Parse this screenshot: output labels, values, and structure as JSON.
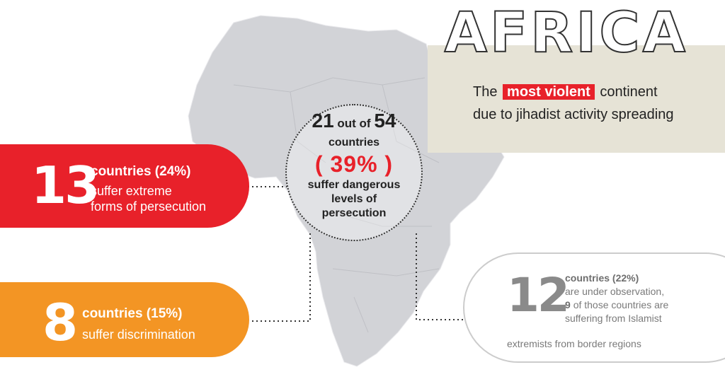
{
  "title": "AFRICA",
  "subtitle": {
    "before": "The",
    "highlight": "most violent",
    "after": "continent",
    "line2": "due to jihadist activity spreading"
  },
  "circle": {
    "count": "21",
    "out_of": "out of",
    "total": "54",
    "countries": "countries",
    "percent": "( 39% )",
    "line1": "suffer dangerous",
    "line2": "levels of",
    "line3": "persecution"
  },
  "extreme": {
    "number": "13",
    "heading": "countries (24%)",
    "line1": "suffer extreme",
    "line2": "forms of persecution"
  },
  "discrimination": {
    "number": "8",
    "heading": "countries (15%)",
    "line1": "suffer discrimination"
  },
  "observation": {
    "number": "12",
    "heading": "countries (22%)",
    "line1": "are under observation,",
    "count9": "9",
    "line2": "of those countries are",
    "line3": "suffering from Islamist",
    "line4": "extremists from border regions"
  },
  "colors": {
    "red": "#e8212a",
    "orange": "#f39524",
    "grey": "#8a8a8a",
    "beige": "#e6e3d6",
    "map": "#cfd0d4"
  }
}
